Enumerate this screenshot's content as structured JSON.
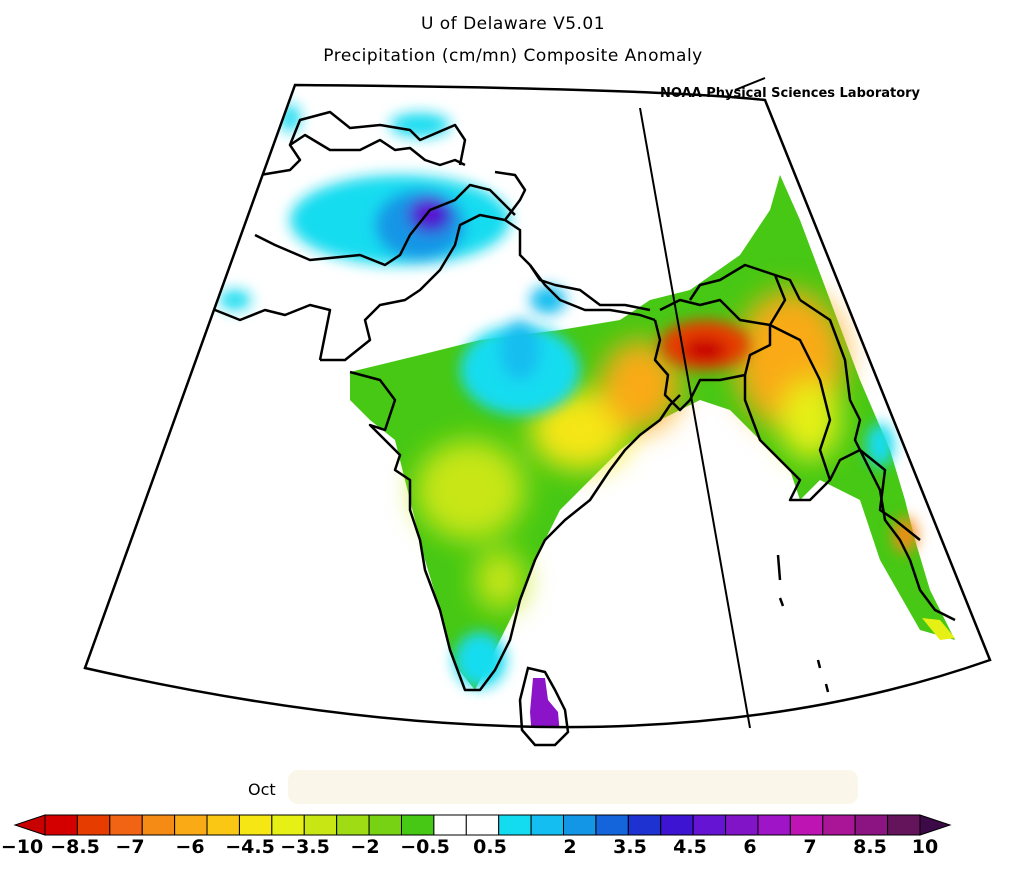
{
  "header": {
    "title_line1": "U of Delaware V5.01",
    "title_line2": "Precipitation (cm/mn) Composite Anomaly",
    "credit": "NOAA Physical Sciences Laboratory"
  },
  "footer": {
    "date_prefix": "Oct"
  },
  "colorbar": {
    "tick_labels": [
      "−10",
      "−8.5",
      "−7",
      "−6",
      "−4.5",
      "−3.5",
      "−2",
      "−0.5",
      "0.5",
      "2",
      "3.5",
      "4.5",
      "6",
      "7",
      "8.5",
      "10"
    ],
    "colors": [
      "#d40000",
      "#e63c00",
      "#f06414",
      "#f58a14",
      "#f9aa14",
      "#fac814",
      "#f5e614",
      "#e6f014",
      "#c8e614",
      "#a0dc14",
      "#78d214",
      "#46c814",
      "#ffffff",
      "#ffffff",
      "#14dcf0",
      "#14bef0",
      "#1496e6",
      "#1464dc",
      "#1e32d2",
      "#3c14d2",
      "#6414d2",
      "#8214c8",
      "#a014c8",
      "#be14b4",
      "#aa1496",
      "#8c1482",
      "#64145a"
    ],
    "left_arrow_color": "#c80000",
    "right_arrow_color": "#3c0a46"
  },
  "map": {
    "region": "South Asia",
    "notable_anomalies": [
      {
        "area": "northern Pakistan",
        "sign": "positive",
        "color": "#5a14d2"
      },
      {
        "area": "Bangladesh",
        "sign": "negative",
        "color": "#d40000"
      },
      {
        "area": "Sri Lanka",
        "sign": "positive",
        "color": "#8c14c8"
      }
    ]
  }
}
